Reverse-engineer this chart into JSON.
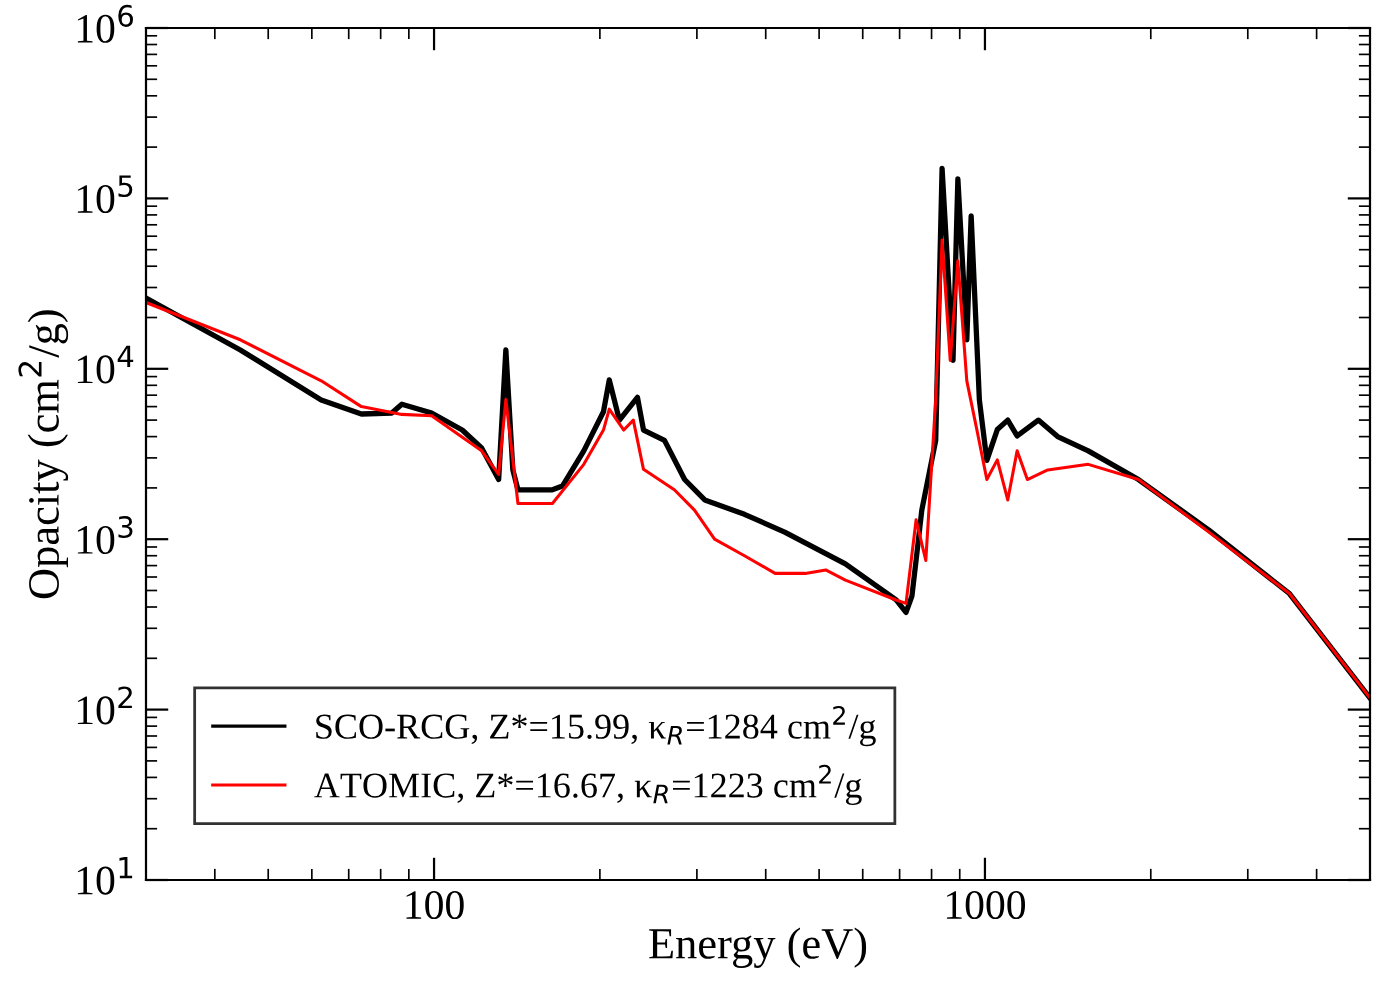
{
  "chart_data": {
    "type": "line",
    "xlabel": "Energy (eV)",
    "ylabel": "Opacity (cm$^{2}$/g)",
    "log": "xy",
    "xlim": [
      30,
      5000
    ],
    "xticks": [
      100,
      1000
    ],
    "ylim": [
      10,
      1000000
    ],
    "yticks": [
      {
        "value": 10,
        "label": "10$^{1}$"
      },
      {
        "value": 100,
        "label": "10$^{2}$"
      },
      {
        "value": 1000,
        "label": "10$^{3}$"
      },
      {
        "value": 10000,
        "label": "10$^{4}$"
      },
      {
        "value": 100000,
        "label": "10$^{5}$"
      },
      {
        "value": 1000000,
        "label": "10$^{6}$"
      }
    ],
    "grid": false,
    "legend": "bottom left",
    "marker": "none",
    "line_style": "solid",
    "series": [
      {
        "name": "SCO-RCG, Z*=15.99, κ$_{R}$=1284 cm$^{2}$/g",
        "color": "#000000",
        "x": [
          30,
          44.5,
          62.4,
          73.8,
          83.8,
          87.4,
          99,
          112.5,
          122,
          131,
          135,
          139,
          142,
          164,
          171,
          187,
          203,
          208,
          217,
          234,
          240,
          262,
          285,
          310,
          366,
          433,
          558,
          690,
          719,
          737,
          750,
          768,
          814,
          836,
          875,
          893,
          927,
          944,
          977,
          1008,
          1053,
          1100,
          1144,
          1250,
          1355,
          1540,
          1900,
          2550,
          3570,
          5000
        ],
        "values": [
          26000,
          12900,
          6560,
          5430,
          5500,
          6200,
          5500,
          4370,
          3430,
          2240,
          12900,
          2550,
          1950,
          1950,
          2050,
          3300,
          5600,
          8600,
          5000,
          6800,
          4370,
          3800,
          2240,
          1700,
          1400,
          1100,
          716,
          440,
          372,
          464,
          755,
          1480,
          3800,
          150000,
          11200,
          130000,
          14800,
          79000,
          6560,
          2900,
          4400,
          5000,
          4040,
          5000,
          4000,
          3300,
          2240,
          1130,
          480,
          117
        ]
      },
      {
        "name": "ATOMIC, Z*=16.67, κ$_{R}$=1223 cm$^{2}$/g",
        "color": "#ff0000",
        "x": [
          30,
          44.5,
          62.4,
          73.8,
          87.4,
          99,
          122,
          131,
          135,
          142,
          164,
          187,
          203,
          208,
          221,
          230,
          240,
          273,
          297,
          323,
          366,
          416,
          472,
          514,
          558,
          690,
          719,
          750,
          781,
          814,
          836,
          865,
          893,
          927,
          967,
          1008,
          1053,
          1100,
          1144,
          1194,
          1300,
          1540,
          1900,
          2550,
          3570,
          5000
        ],
        "values": [
          24500,
          14800,
          8500,
          6000,
          5400,
          5300,
          3300,
          2400,
          6600,
          1620,
          1620,
          2750,
          4370,
          5800,
          4370,
          5000,
          2570,
          1950,
          1480,
          1000,
          800,
          630,
          630,
          660,
          575,
          440,
          420,
          1300,
          750,
          6600,
          57000,
          11200,
          43000,
          8500,
          4370,
          2240,
          2920,
          1700,
          3300,
          2240,
          2550,
          2750,
          2240,
          1100,
          480,
          117
        ]
      }
    ]
  }
}
